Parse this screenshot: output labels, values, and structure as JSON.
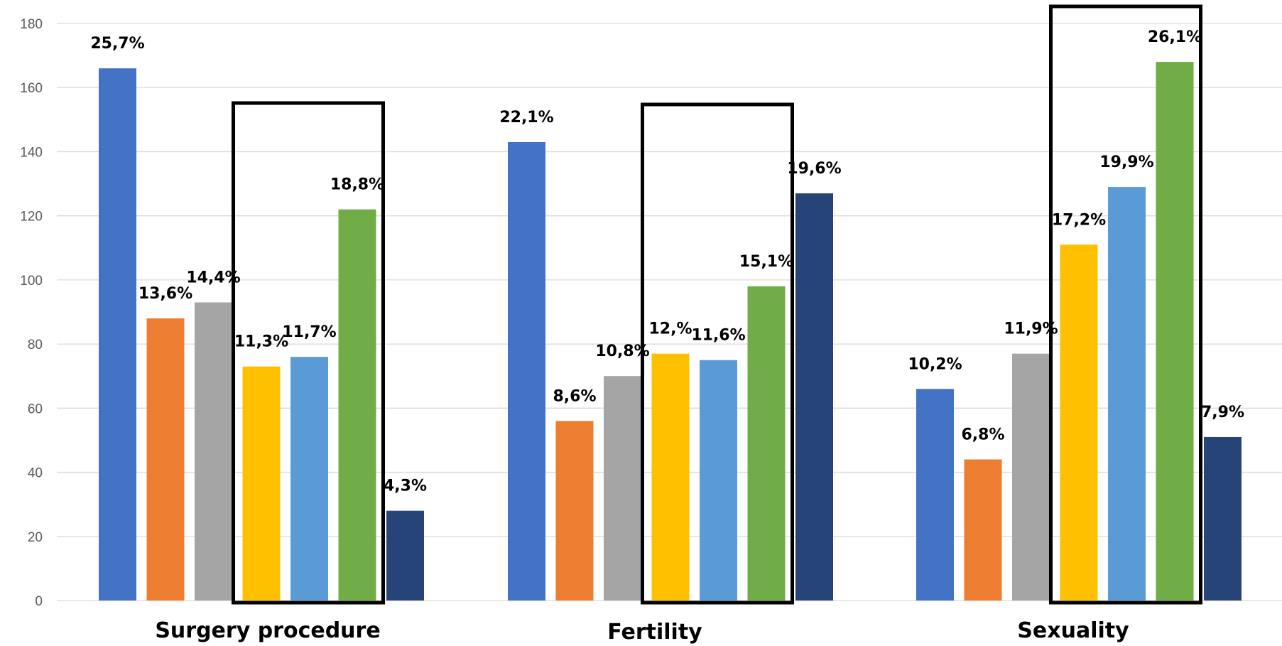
{
  "chart_data": {
    "type": "bar",
    "categories": [
      "Surgery procedure",
      "Fertility",
      "Sexuality"
    ],
    "ylim": [
      0,
      180
    ],
    "yticks": [
      0,
      20,
      40,
      60,
      80,
      100,
      120,
      140,
      160,
      180
    ],
    "grid": true,
    "legend": "none",
    "colors": [
      "#4472c4",
      "#ed7d31",
      "#a5a5a5",
      "#ffc000",
      "#5b9bd5",
      "#70ad47",
      "#264478"
    ],
    "series": [
      {
        "values": [
          166,
          143,
          66
        ],
        "labels": [
          "25,7%",
          "22,1%",
          "10,2%"
        ]
      },
      {
        "values": [
          88,
          56,
          44
        ],
        "labels": [
          "13,6%",
          "8,6%",
          "6,8%"
        ]
      },
      {
        "values": [
          93,
          70,
          77
        ],
        "labels": [
          "14,4%",
          "10,8%",
          "11,9%"
        ]
      },
      {
        "values": [
          73,
          77,
          111
        ],
        "labels": [
          "11,3%",
          "12,%",
          "17,2%"
        ]
      },
      {
        "values": [
          76,
          75,
          129
        ],
        "labels": [
          "11,7%",
          "11,6%",
          "19,9%"
        ]
      },
      {
        "values": [
          122,
          98,
          168
        ],
        "labels": [
          "18,8%",
          "15,1%",
          "26,1%"
        ]
      },
      {
        "values": [
          28,
          127,
          51
        ],
        "labels": [
          "4,3%",
          "19,6%",
          "7,9%"
        ]
      }
    ],
    "highlight": {
      "series_range": [
        4,
        6
      ],
      "style": "black outlined box around series 4 to 6 in every category"
    }
  }
}
